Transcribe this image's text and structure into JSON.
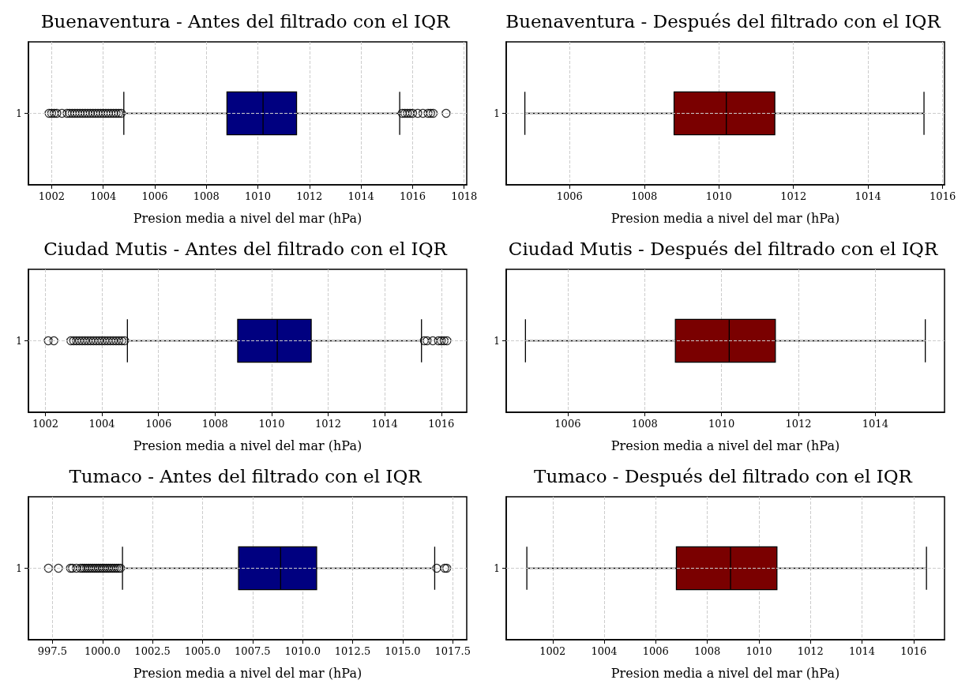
{
  "chart_data": [
    {
      "type": "box",
      "title": "Buenaventura - Antes del filtrado con el IQR",
      "xlabel": "Presion media a nivel del mar (hPa)",
      "orientation": "horizontal",
      "categories": [
        "1"
      ],
      "color": "#000080",
      "grid": true,
      "xlim": [
        1001.1,
        1018.1
      ],
      "xticks": [
        1002,
        1004,
        1006,
        1008,
        1010,
        1012,
        1014,
        1016,
        1018
      ],
      "boxes": [
        {
          "low": 1004.8,
          "q1": 1008.8,
          "median": 1010.2,
          "q3": 1011.5,
          "high": 1015.5,
          "outliers": [
            1001.9,
            1002.0,
            1002.1,
            1002.2,
            1002.4,
            1002.6,
            1002.7,
            1002.8,
            1002.9,
            1003.0,
            1003.1,
            1003.2,
            1003.3,
            1003.4,
            1003.5,
            1003.6,
            1003.7,
            1003.8,
            1003.9,
            1004.0,
            1004.1,
            1004.2,
            1004.3,
            1004.4,
            1004.5,
            1004.6,
            1004.7,
            1015.6,
            1015.7,
            1015.8,
            1015.9,
            1016.0,
            1016.2,
            1016.4,
            1016.6,
            1016.7,
            1016.8,
            1017.3
          ]
        }
      ]
    },
    {
      "type": "box",
      "title": "Buenaventura - Después del filtrado con el IQR",
      "xlabel": "Presion media a nivel del mar (hPa)",
      "orientation": "horizontal",
      "categories": [
        "1"
      ],
      "color": "#7a0000",
      "grid": true,
      "xlim": [
        1004.3,
        1016.05
      ],
      "xticks": [
        1006,
        1008,
        1010,
        1012,
        1014,
        1016
      ],
      "boxes": [
        {
          "low": 1004.8,
          "q1": 1008.8,
          "median": 1010.2,
          "q3": 1011.5,
          "high": 1015.5
        }
      ]
    },
    {
      "type": "box",
      "title": "Ciudad Mutis - Antes del filtrado con el IQR",
      "xlabel": "Presion media a nivel del mar (hPa)",
      "orientation": "horizontal",
      "categories": [
        "1"
      ],
      "color": "#000080",
      "grid": true,
      "xlim": [
        1001.4,
        1016.9
      ],
      "xticks": [
        1002,
        1004,
        1006,
        1008,
        1010,
        1012,
        1014,
        1016
      ],
      "boxes": [
        {
          "low": 1004.9,
          "q1": 1008.8,
          "median": 1010.2,
          "q3": 1011.4,
          "high": 1015.3,
          "outliers": [
            1002.1,
            1002.3,
            1002.9,
            1003.0,
            1003.1,
            1003.2,
            1003.3,
            1003.4,
            1003.5,
            1003.6,
            1003.7,
            1003.8,
            1003.9,
            1004.0,
            1004.1,
            1004.2,
            1004.3,
            1004.4,
            1004.5,
            1004.6,
            1004.7,
            1004.8,
            1015.4,
            1015.5,
            1015.7,
            1015.9,
            1016.0,
            1016.1,
            1016.2
          ]
        }
      ]
    },
    {
      "type": "box",
      "title": "Ciudad Mutis - Después del filtrado con el IQR",
      "xlabel": "Presion media a nivel del mar (hPa)",
      "orientation": "horizontal",
      "categories": [
        "1"
      ],
      "color": "#7a0000",
      "grid": true,
      "xlim": [
        1004.4,
        1015.8
      ],
      "xticks": [
        1006,
        1008,
        1010,
        1012,
        1014
      ],
      "boxes": [
        {
          "low": 1004.9,
          "q1": 1008.8,
          "median": 1010.2,
          "q3": 1011.4,
          "high": 1015.3
        }
      ]
    },
    {
      "type": "box",
      "title": "Tumaco - Antes del filtrado con el IQR",
      "xlabel": "Presion media a nivel del mar (hPa)",
      "orientation": "horizontal",
      "categories": [
        "1"
      ],
      "color": "#000080",
      "grid": true,
      "xlim": [
        996.3,
        1018.2
      ],
      "xticks": [
        997.5,
        {
          "value": 1000,
          "label": "1000.0"
        },
        1002.5,
        {
          "value": 1005,
          "label": "1005.0"
        },
        1007.5,
        {
          "value": 1010,
          "label": "1010.0"
        },
        1012.5,
        {
          "value": 1015,
          "label": "1015.0"
        },
        1017.5
      ],
      "boxes": [
        {
          "low": 1001.0,
          "q1": 1006.8,
          "median": 1008.9,
          "q3": 1010.7,
          "high": 1016.6,
          "outliers": [
            997.3,
            997.8,
            998.4,
            998.5,
            998.7,
            998.9,
            999.0,
            999.1,
            999.2,
            999.3,
            999.4,
            999.5,
            999.6,
            999.7,
            999.8,
            999.9,
            1000.0,
            1000.1,
            1000.2,
            1000.3,
            1000.4,
            1000.5,
            1000.6,
            1000.7,
            1000.8,
            1000.9,
            1016.7,
            1017.1,
            1017.2
          ]
        }
      ]
    },
    {
      "type": "box",
      "title": "Tumaco - Después del filtrado con el IQR",
      "xlabel": "Presion media a nivel del mar (hPa)",
      "orientation": "horizontal",
      "categories": [
        "1"
      ],
      "color": "#7a0000",
      "grid": true,
      "xlim": [
        1000.2,
        1017.2
      ],
      "xticks": [
        1002,
        1004,
        1006,
        1008,
        1010,
        1012,
        1014,
        1016
      ],
      "boxes": [
        {
          "low": 1001.0,
          "q1": 1006.8,
          "median": 1008.9,
          "q3": 1010.7,
          "high": 1016.5
        }
      ]
    }
  ]
}
